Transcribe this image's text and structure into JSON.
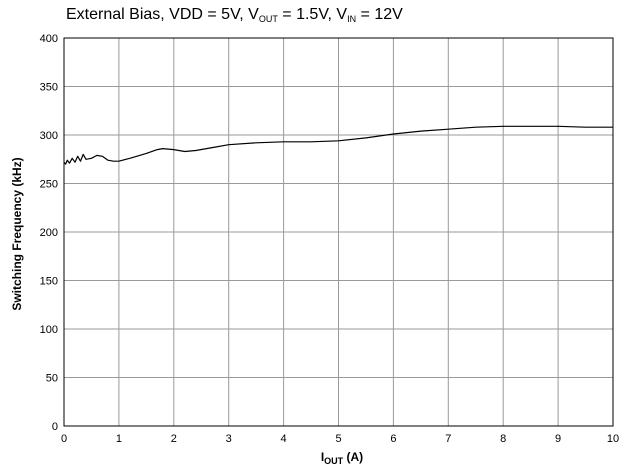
{
  "chart_data": {
    "type": "line",
    "title": {
      "prefix": "External Bias, VDD = 5V, V",
      "sub1": "OUT",
      "mid": " = 1.5V, V",
      "sub2": "IN",
      "suffix": " = 12V"
    },
    "xlabel": {
      "main": "I",
      "sub": "OUT",
      "unit": " (A)"
    },
    "ylabel": "Switching Frequency (kHz)",
    "xlim": [
      0,
      10
    ],
    "ylim": [
      0,
      400
    ],
    "xticks": [
      "0",
      "1",
      "2",
      "3",
      "4",
      "5",
      "6",
      "7",
      "8",
      "9",
      "10"
    ],
    "yticks": [
      "0",
      "50",
      "100",
      "150",
      "200",
      "250",
      "300",
      "350",
      "400"
    ],
    "grid": true,
    "series": [
      {
        "color": "#000000",
        "x": [
          0,
          0.03,
          0.06,
          0.1,
          0.15,
          0.2,
          0.25,
          0.3,
          0.35,
          0.4,
          0.5,
          0.6,
          0.7,
          0.8,
          0.9,
          1.0,
          1.2,
          1.5,
          1.7,
          1.8,
          2.0,
          2.2,
          2.4,
          2.7,
          3.0,
          3.5,
          4.0,
          4.5,
          5.0,
          5.5,
          6.0,
          6.5,
          7.0,
          7.5,
          8.0,
          8.5,
          9.0,
          9.5,
          10.0
        ],
        "y": [
          272,
          270,
          274,
          271,
          276,
          272,
          278,
          273,
          280,
          275,
          276,
          279,
          278,
          274,
          273,
          273,
          276,
          281,
          285,
          286,
          285,
          283,
          284,
          287,
          290,
          292,
          293,
          293,
          294,
          297,
          301,
          304,
          306,
          308,
          309,
          309,
          309,
          308,
          308
        ]
      }
    ]
  }
}
